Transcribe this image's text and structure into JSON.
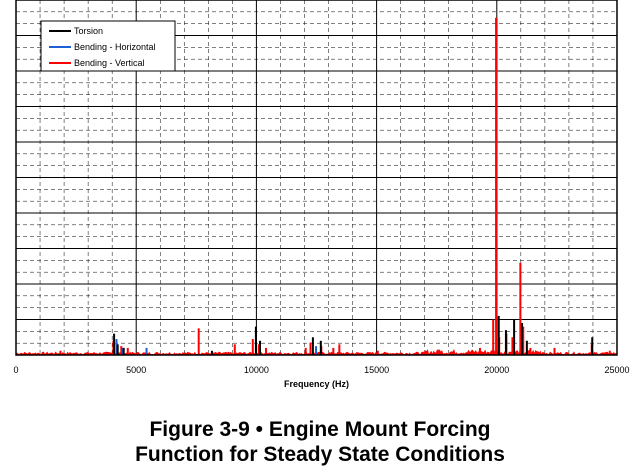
{
  "chart_data": {
    "type": "line",
    "title": "",
    "xlabel": "Frequency (Hz)",
    "ylabel": "",
    "xlim": [
      0,
      25000
    ],
    "ylim": [
      0,
      1
    ],
    "y_units": "relative amplitude (no y tick labels shown)",
    "x_ticks": [
      0,
      5000,
      10000,
      15000,
      20000,
      25000
    ],
    "x_tick_labels": [
      "0",
      "5000",
      "10000",
      "15000",
      "20000",
      "25000"
    ],
    "grid": "on (solid major, dashed minor)",
    "legend_position": "top-left",
    "series": [
      {
        "name": "Torsion",
        "color": "#000000",
        "points": [
          [
            4080,
            0.06
          ],
          [
            4230,
            0.03
          ],
          [
            4480,
            0.02
          ],
          [
            8150,
            0.012
          ],
          [
            9980,
            0.08
          ],
          [
            10150,
            0.04
          ],
          [
            12350,
            0.05
          ],
          [
            12680,
            0.04
          ],
          [
            20080,
            0.11
          ],
          [
            20380,
            0.07
          ],
          [
            20720,
            0.1
          ],
          [
            21050,
            0.09
          ],
          [
            21250,
            0.04
          ],
          [
            23970,
            0.05
          ]
        ]
      },
      {
        "name": "Bending - Horizontal",
        "color": "#1f5fd6",
        "points": [
          [
            4180,
            0.045
          ],
          [
            4450,
            0.02
          ],
          [
            5430,
            0.02
          ],
          [
            12480,
            0.025
          ]
        ]
      },
      {
        "name": "Bending - Vertical",
        "color": "#ff0000",
        "points": [
          [
            1850,
            0.012
          ],
          [
            4050,
            0.04
          ],
          [
            4380,
            0.025
          ],
          [
            4650,
            0.02
          ],
          [
            7600,
            0.075
          ],
          [
            9100,
            0.03
          ],
          [
            9850,
            0.045
          ],
          [
            10100,
            0.03
          ],
          [
            10400,
            0.02
          ],
          [
            12050,
            0.02
          ],
          [
            12250,
            0.035
          ],
          [
            12700,
            0.025
          ],
          [
            13200,
            0.02
          ],
          [
            13450,
            0.03
          ],
          [
            15050,
            0.012
          ],
          [
            17600,
            0.015
          ],
          [
            19300,
            0.02
          ],
          [
            19850,
            0.1
          ],
          [
            19980,
            0.95
          ],
          [
            20100,
            0.05
          ],
          [
            20400,
            0.06
          ],
          [
            20650,
            0.05
          ],
          [
            20980,
            0.26
          ],
          [
            21100,
            0.08
          ],
          [
            21400,
            0.02
          ],
          [
            22400,
            0.02
          ],
          [
            23950,
            0.03
          ],
          [
            24700,
            0.012
          ]
        ]
      }
    ]
  },
  "caption": {
    "line1": "Figure 3-9  •  Engine Mount Forcing",
    "line2": "Function for Steady State Conditions"
  }
}
